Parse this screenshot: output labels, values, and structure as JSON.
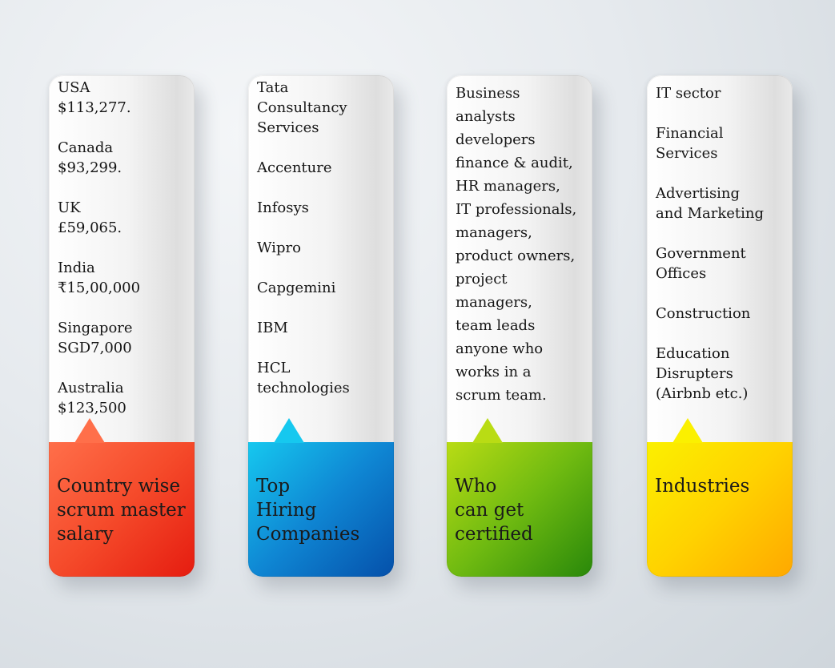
{
  "colors": {
    "card1": "#f54a2a",
    "card2": "#0f86d3",
    "card3": "#6fba11",
    "card4": "#ffd200"
  },
  "cards": [
    {
      "label": "Country wise\nscrum master\nsalary",
      "items": [
        "USA\n$113,277.",
        "Canada\n$93,299.",
        "UK\n£59,065.",
        "India\n₹15,00,000",
        "Singapore\nSGD7,000",
        "Australia\n$123,500"
      ]
    },
    {
      "label": "Top\nHiring\nCompanies",
      "items": [
        "Tata\nConsultancy\nServices",
        "Accenture",
        "Infosys",
        "Wipro",
        "Capgemini",
        "IBM",
        "HCL\ntechnologies"
      ]
    },
    {
      "label": "Who\ncan get\ncertified",
      "items": [
        "Business\nanalysts\ndevelopers\nfinance & audit,\nHR managers,\nIT professionals,\nmanagers,\nproduct owners,\nproject\nmanagers,\nteam leads\nanyone who\nworks in a\nscrum team."
      ]
    },
    {
      "label": "Industries",
      "items": [
        "IT sector",
        "Financial\nServices",
        "Advertising\nand Marketing",
        "Government\nOffices",
        "Construction",
        "Education\nDisrupters\n(Airbnb etc.)"
      ]
    }
  ]
}
